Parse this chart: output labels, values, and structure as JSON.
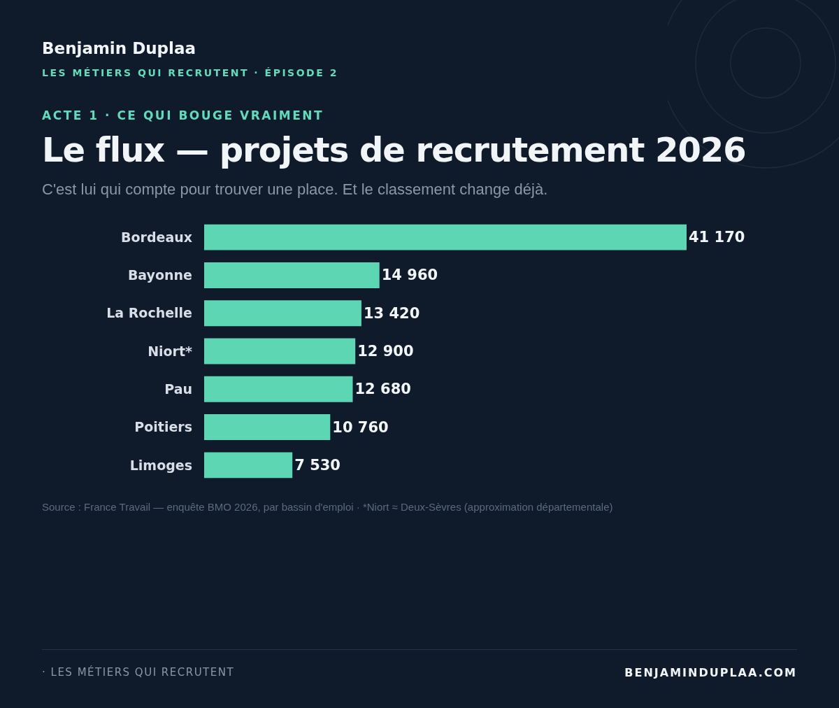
{
  "chart_data": {
    "type": "bar",
    "orientation": "horizontal",
    "title": "Le flux — projets de recrutement 2026",
    "subtitle": "C'est lui qui compte pour trouver une place. Et le classement change déjà.",
    "annotations": [
      "Benjamin Duplaa",
      "LES MÉTIERS QUI RECRUTENT · ÉPISODE 2",
      "ACTE 1 · CE QUI BOUGE VRAIMENT",
      "Source : France Travail — enquête BMO 2026, par bassin d'emploi · *Niort ≈ Deux-Sèvres (approximation départementale)",
      "· LES MÉTIERS QUI RECRUTENT",
      "BENJAMINDUPLAA.COM"
    ],
    "categories": [
      "Bordeaux",
      "Bayonne",
      "La Rochelle",
      "Niort*",
      "Pau",
      "Poitiers",
      "Limoges"
    ],
    "values": [
      41170,
      14960,
      13420,
      12900,
      12680,
      10760,
      7530
    ],
    "value_labels": [
      "41 170",
      "14 960",
      "13 420",
      "12 900",
      "12 680",
      "10 760",
      "7 530"
    ],
    "color": "#5dd6b4",
    "grid": false,
    "legend": false,
    "tick_labels": "y"
  }
}
